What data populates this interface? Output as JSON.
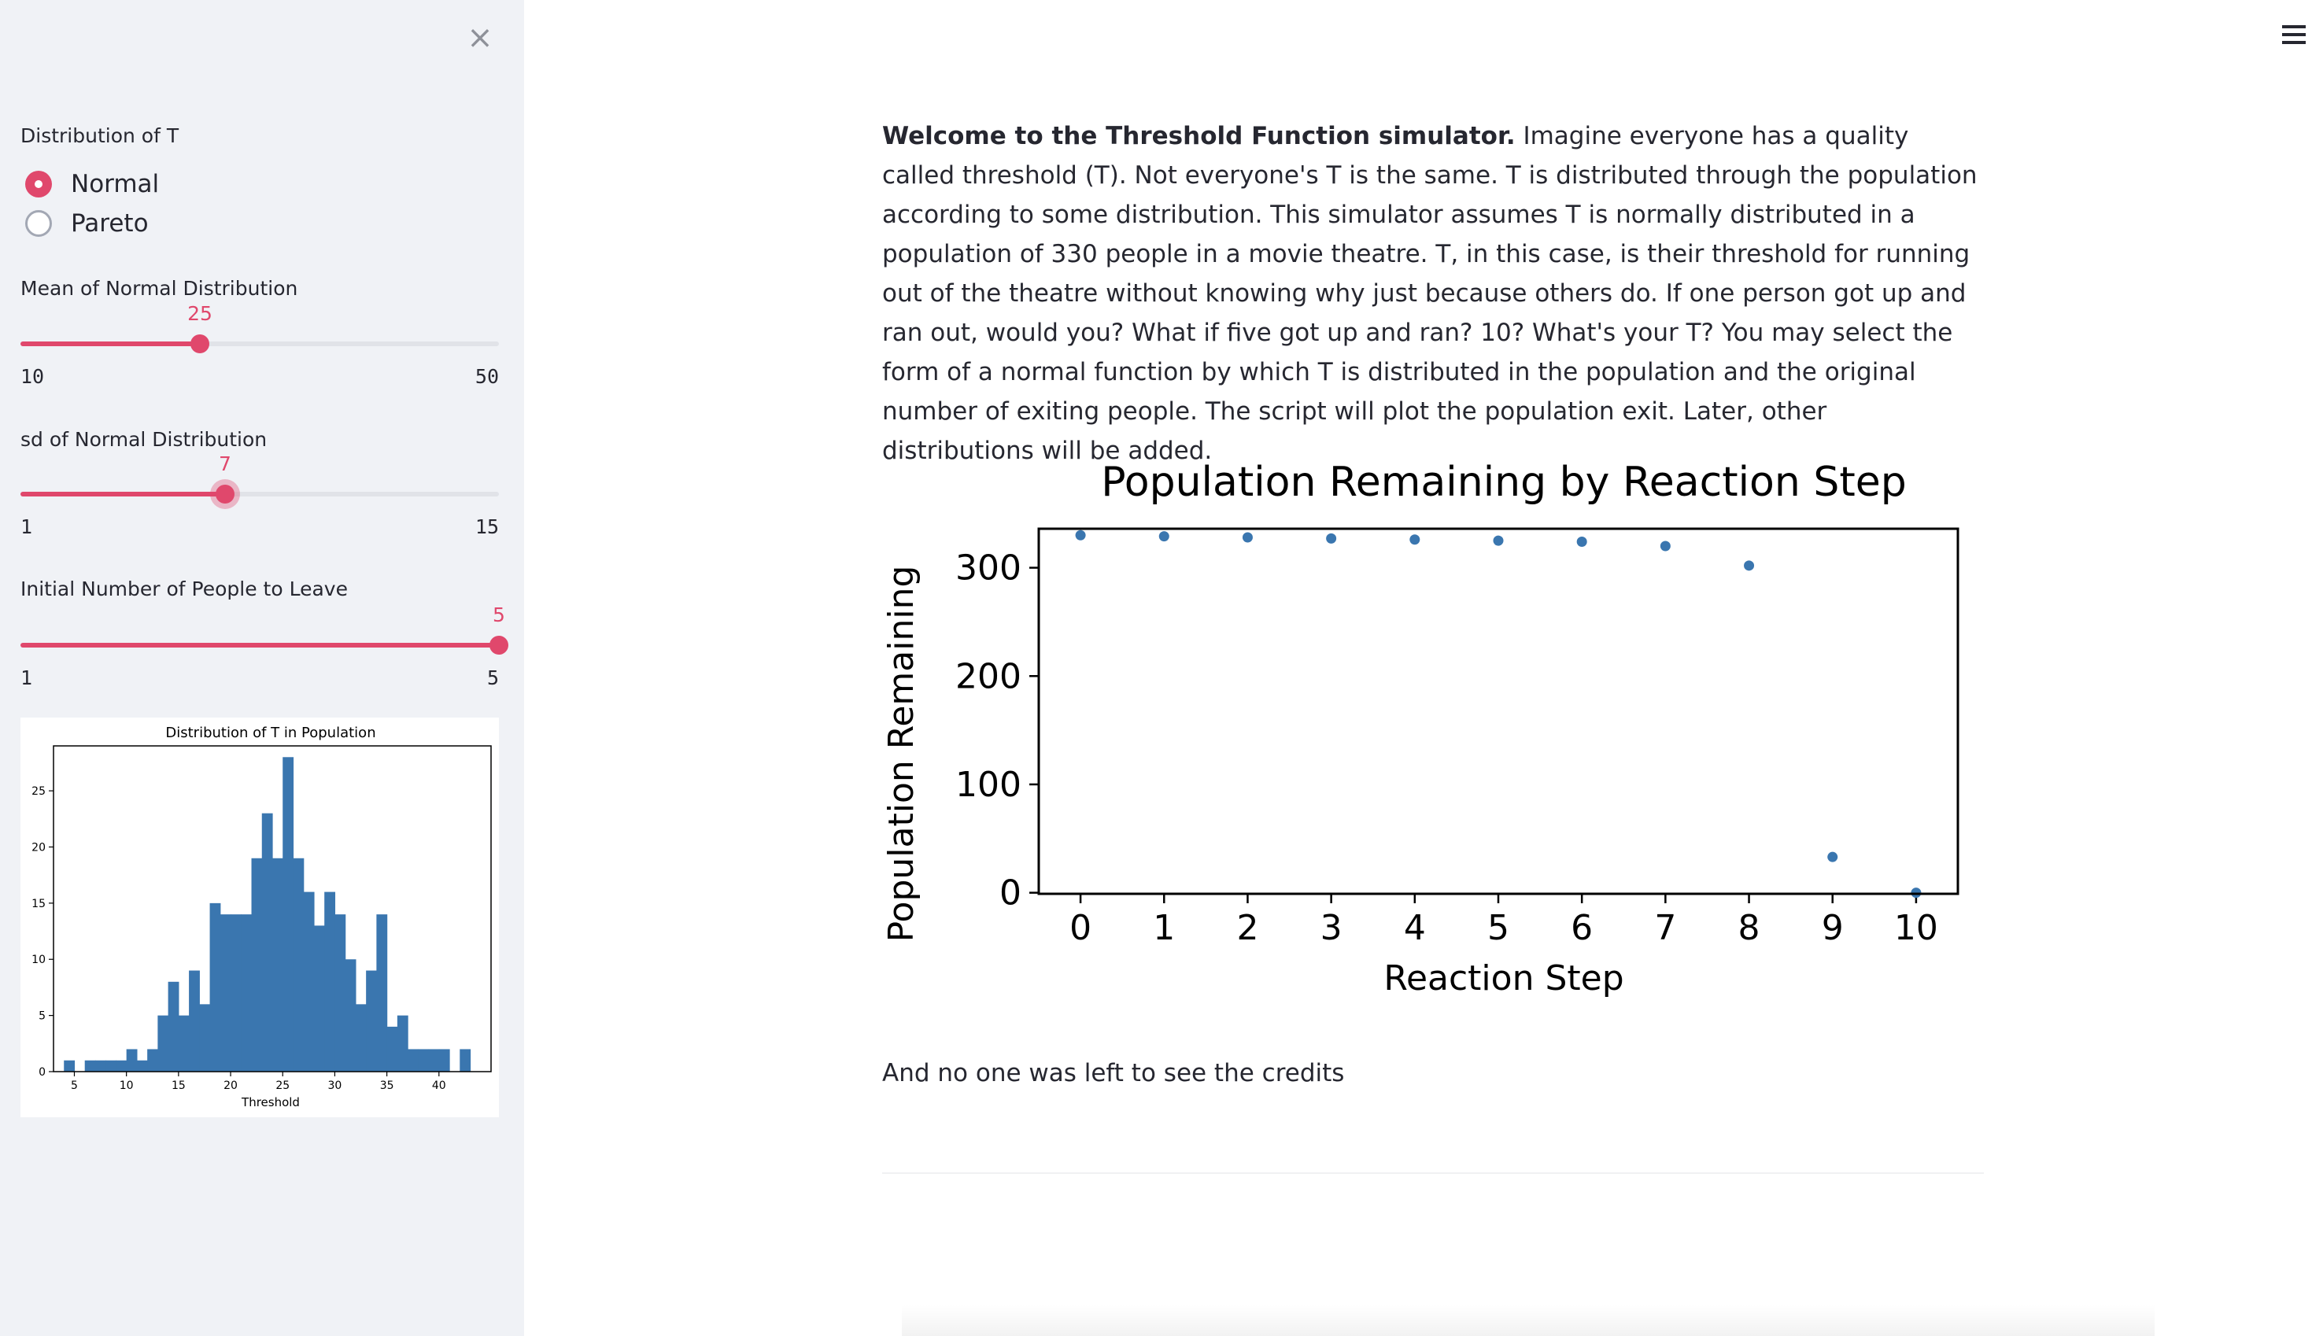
{
  "sidebar": {
    "close_glyph": "×",
    "distribution": {
      "label": "Distribution of T",
      "options": [
        "Normal",
        "Pareto"
      ],
      "selected": "Normal"
    },
    "mean_slider": {
      "label": "Mean of Normal Distribution",
      "value": "25",
      "min": "10",
      "max": "50"
    },
    "sd_slider": {
      "label": "sd of Normal Distribution",
      "value": "7",
      "min": "1",
      "max": "15"
    },
    "people_slider": {
      "label": "Initial Number of People to Leave",
      "value": "5",
      "min": "1",
      "max": "5"
    }
  },
  "histogram": {
    "chart_data": {
      "type": "bar",
      "title": "Distribution of T in Population",
      "xlabel": "Threshold",
      "ylabel": "",
      "xlim": [
        3,
        45
      ],
      "ylim": [
        0,
        29
      ],
      "xticks": [
        5,
        10,
        15,
        20,
        25,
        30,
        35,
        40
      ],
      "yticks": [
        0,
        5,
        10,
        15,
        20,
        25
      ],
      "bin_start": 4,
      "bin_width": 1,
      "values": [
        1,
        0,
        1,
        1,
        1,
        1,
        2,
        1,
        2,
        5,
        8,
        5,
        9,
        6,
        15,
        14,
        14,
        14,
        19,
        23,
        19,
        28,
        19,
        16,
        13,
        16,
        14,
        10,
        6,
        9,
        14,
        4,
        5,
        2,
        2,
        2,
        2,
        0,
        2
      ],
      "color": "#3a76af"
    }
  },
  "main": {
    "intro_bold": "Welcome to the Threshold Function simulator.",
    "intro_text": " Imagine everyone has a quality called threshold (T). Not everyone's T is the same. T is distributed through the population according to some distribution. This simulator assumes T is normally distributed in a population of 330 people in a movie theatre. T, in this case, is their threshold for running out of the theatre without knowing why just because others do. If one person got up and ran out, would you? What if five got up and ran? 10? What's your T? You may select the form of a normal function by which T is distributed in the population and the original number of exiting people. The script will plot the population exit. Later, other distributions will be added.",
    "credits": "And no one was left to see the credits"
  },
  "chart_data": {
    "type": "scatter",
    "title": "Population Remaining by Reaction Step",
    "xlabel": "Reaction Step",
    "ylabel": "Population Remaining",
    "x": [
      0,
      1,
      2,
      3,
      4,
      5,
      6,
      7,
      8,
      9,
      10
    ],
    "y": [
      330,
      329,
      328,
      327,
      326,
      325,
      324,
      320,
      302,
      33,
      0
    ],
    "xlim": [
      -0.5,
      10.5
    ],
    "ylim": [
      -1,
      336
    ],
    "xticks": [
      0,
      1,
      2,
      3,
      4,
      5,
      6,
      7,
      8,
      9,
      10
    ],
    "yticks": [
      0,
      100,
      200,
      300
    ],
    "color": "#3a76af"
  }
}
